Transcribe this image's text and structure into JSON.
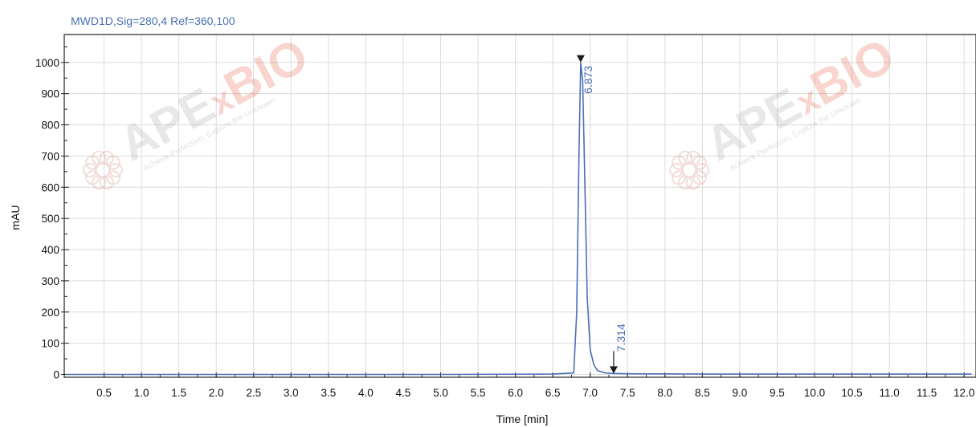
{
  "chart_data": {
    "type": "line",
    "signal_label": "MWD1D,Sig=280,4  Ref=360,100",
    "xlabel": "Time [min]",
    "ylabel": "mAU",
    "xlim": [
      0,
      12.1
    ],
    "ylim": [
      -10,
      1090
    ],
    "x_ticks": [
      "0.5",
      "1.0",
      "1.5",
      "2.0",
      "2.5",
      "3.0",
      "3.5",
      "4.0",
      "4.5",
      "5.0",
      "5.5",
      "6.0",
      "6.5",
      "7.0",
      "7.5",
      "8.0",
      "8.5",
      "9.0",
      "9.5",
      "10.0",
      "10.5",
      "11.0",
      "11.5",
      "12.0"
    ],
    "y_ticks": [
      "0",
      "100",
      "200",
      "300",
      "400",
      "500",
      "600",
      "700",
      "800",
      "900",
      "1000"
    ],
    "grid": true,
    "line_color": "#4a6fb5",
    "series": [
      {
        "x": [
          0,
          5.0,
          6.5,
          6.78,
          6.82,
          6.85,
          6.873,
          6.9,
          6.93,
          6.96,
          7.0,
          7.05,
          7.1,
          7.2,
          7.314,
          7.5,
          9.0,
          12.1
        ],
        "y": [
          0,
          0,
          1,
          5,
          200,
          700,
          1000,
          940,
          600,
          250,
          80,
          30,
          12,
          5,
          3,
          2,
          1,
          1
        ]
      }
    ],
    "peaks": [
      {
        "rt": "6.873",
        "x": 6.873,
        "y": 1000
      },
      {
        "rt": "7.314",
        "x": 7.314,
        "y": 3
      }
    ]
  },
  "watermarks": [
    {
      "brand_a": "APE",
      "brand_x": "x",
      "brand_b": "BIO",
      "tagline": "Achieve Perfection, Explore the Unknown",
      "icon": "cell-cluster-logo"
    },
    {
      "brand_a": "APE",
      "brand_x": "x",
      "brand_b": "BIO",
      "tagline": "Achieve Perfection, Explore the Unknown",
      "icon": "cell-cluster-logo"
    }
  ]
}
